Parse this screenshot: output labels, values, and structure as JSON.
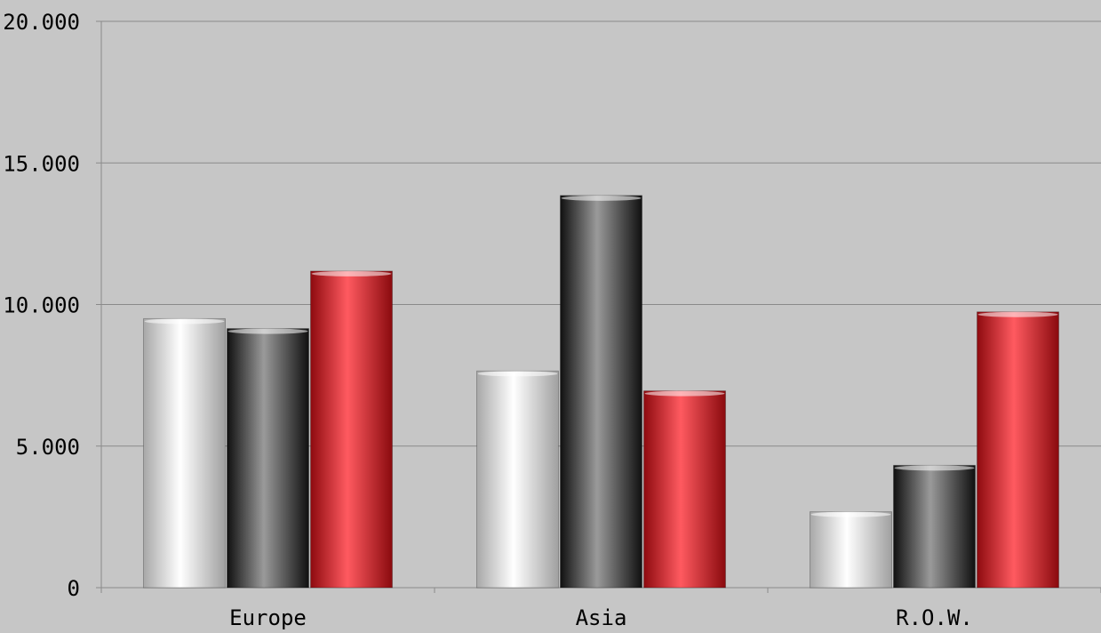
{
  "chart_data": {
    "type": "bar",
    "categories": [
      "Europe",
      "Asia",
      "R.O.W."
    ],
    "series": [
      {
        "values": [
          9500,
          7650,
          2680
        ],
        "color": "#f2f2f2"
      },
      {
        "values": [
          9150,
          13850,
          4320
        ],
        "color": "#3a3a3a"
      },
      {
        "values": [
          11180,
          6950,
          9740
        ],
        "color": "#e5333a"
      }
    ],
    "ylim": [
      0,
      20000
    ],
    "yticks": [
      0,
      5000,
      10000,
      15000,
      20000
    ],
    "ytick_labels": [
      "0",
      "5.000",
      "10.000",
      "15.000",
      "20.000"
    ],
    "grid": true,
    "legend": "none",
    "background": "#c6c6c6"
  }
}
